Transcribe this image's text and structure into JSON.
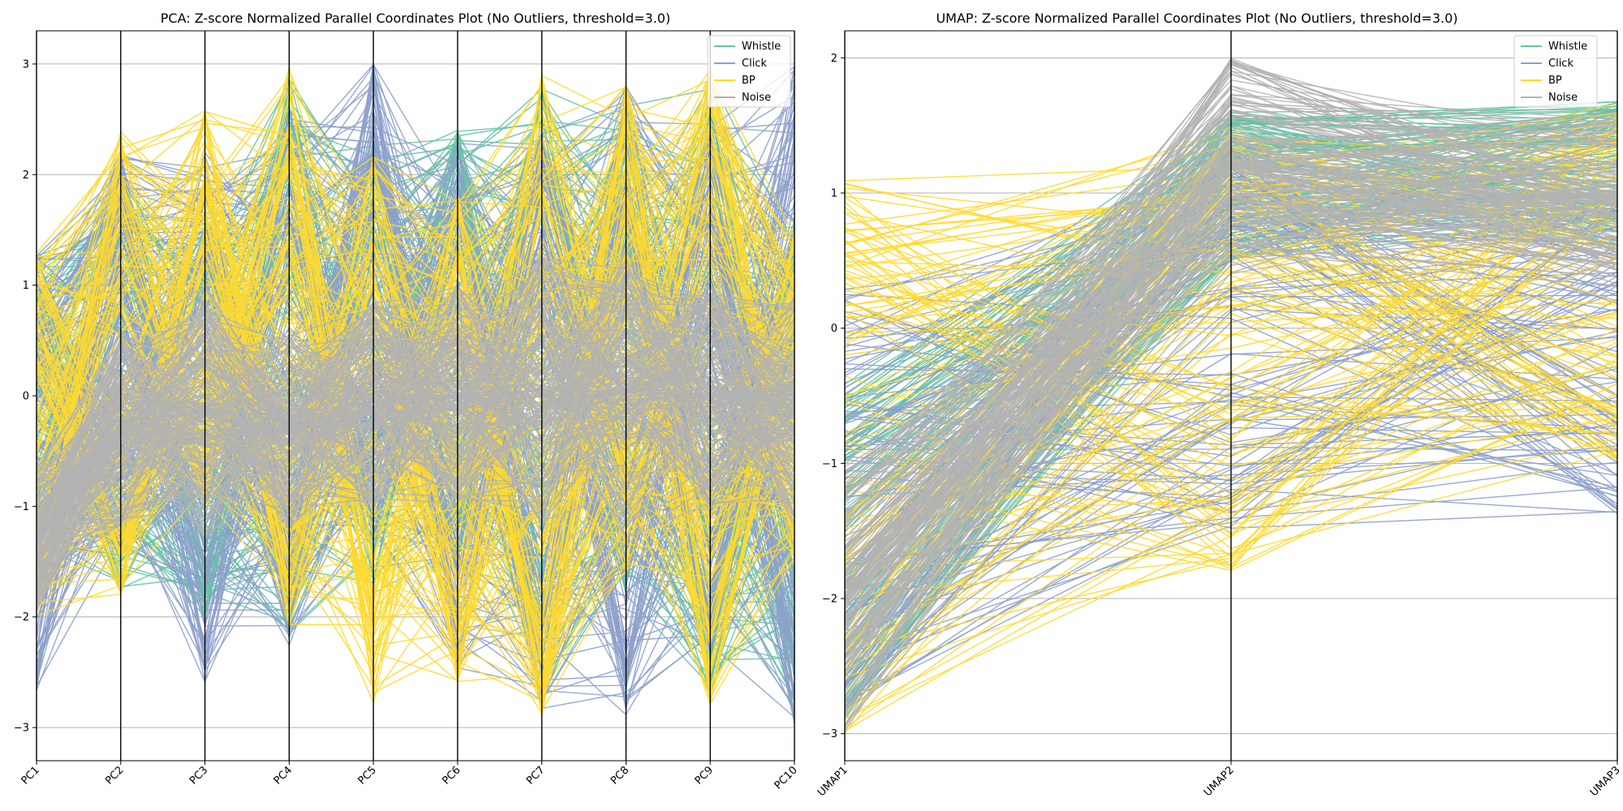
{
  "figure": {
    "background": "#ffffff"
  },
  "chart_data": [
    {
      "type": "parallel-coordinates",
      "title": "PCA: Z-score Normalized Parallel Coordinates Plot (No Outliers, threshold=3.0)",
      "axes": [
        "PC1",
        "PC2",
        "PC3",
        "PC4",
        "PC5",
        "PC6",
        "PC7",
        "PC8",
        "PC9",
        "PC10"
      ],
      "ylim": [
        -3.3,
        3.3
      ],
      "yticks": [
        -3,
        -2,
        -1,
        0,
        1,
        2,
        3
      ],
      "ytick_labels": [
        "−3",
        "−2",
        "−1",
        "0",
        "1",
        "2",
        "3"
      ],
      "grid": true,
      "legend": {
        "placement": "top-right",
        "entries": [
          {
            "label": "Whistle",
            "color": "#66c2a5"
          },
          {
            "label": "Click",
            "color": "#8da0cb"
          },
          {
            "label": "BP",
            "color": "#ffd92f"
          },
          {
            "label": "Noise",
            "color": "#b3b3b3"
          }
        ]
      },
      "series": [
        {
          "name": "Whistle",
          "color": "#66c2a5",
          "ranges": [
            [
              -1.5,
              1.3
            ],
            [
              -1.8,
              2.1
            ],
            [
              -2.0,
              1.6
            ],
            [
              -2.2,
              2.9
            ],
            [
              -1.8,
              2.3
            ],
            [
              -1.6,
              2.4
            ],
            [
              -2.8,
              2.8
            ],
            [
              -1.8,
              2.7
            ],
            [
              -2.8,
              2.9
            ],
            [
              -2.9,
              1.6
            ]
          ]
        },
        {
          "name": "Click",
          "color": "#8da0cb",
          "ranges": [
            [
              -2.7,
              1.3
            ],
            [
              -1.4,
              2.2
            ],
            [
              -2.6,
              2.2
            ],
            [
              -2.3,
              2.6
            ],
            [
              -1.3,
              3.0
            ],
            [
              -2.5,
              2.3
            ],
            [
              -2.9,
              2.4
            ],
            [
              -2.9,
              2.8
            ],
            [
              -2.4,
              2.5
            ],
            [
              -3.0,
              3.0
            ]
          ]
        },
        {
          "name": "BP",
          "color": "#ffd92f",
          "ranges": [
            [
              -2.0,
              1.3
            ],
            [
              -1.8,
              2.4
            ],
            [
              -1.0,
              2.6
            ],
            [
              -2.1,
              3.0
            ],
            [
              -2.8,
              2.2
            ],
            [
              -2.6,
              1.8
            ],
            [
              -3.0,
              2.9
            ],
            [
              -1.6,
              2.8
            ],
            [
              -2.8,
              3.0
            ],
            [
              -1.5,
              1.5
            ]
          ]
        },
        {
          "name": "Noise",
          "color": "#b3b3b3",
          "ranges": [
            [
              -2.0,
              -0.6
            ],
            [
              -1.2,
              0.6
            ],
            [
              -1.3,
              1.0
            ],
            [
              -1.2,
              0.6
            ],
            [
              -1.0,
              0.9
            ],
            [
              -1.0,
              1.0
            ],
            [
              -1.2,
              1.3
            ],
            [
              -1.3,
              1.4
            ],
            [
              -1.0,
              1.0
            ],
            [
              -1.2,
              0.9
            ]
          ]
        }
      ]
    },
    {
      "type": "parallel-coordinates",
      "title": "UMAP: Z-score Normalized Parallel Coordinates Plot (No Outliers, threshold=3.0)",
      "axes": [
        "UMAP1",
        "UMAP2",
        "UMAP3"
      ],
      "ylim": [
        -3.2,
        2.2
      ],
      "yticks": [
        -3,
        -2,
        -1,
        0,
        1,
        2
      ],
      "ytick_labels": [
        "−3",
        "−2",
        "−1",
        "0",
        "1",
        "2"
      ],
      "grid": true,
      "legend": {
        "placement": "top-right",
        "entries": [
          {
            "label": "Whistle",
            "color": "#66c2a5"
          },
          {
            "label": "Click",
            "color": "#8da0cb"
          },
          {
            "label": "BP",
            "color": "#ffd92f"
          },
          {
            "label": "Noise",
            "color": "#b3b3b3"
          }
        ]
      },
      "series": [
        {
          "name": "Whistle",
          "color": "#66c2a5",
          "ranges": [
            [
              -2.9,
              -0.4
            ],
            [
              0.5,
              1.6
            ],
            [
              0.6,
              1.7
            ]
          ]
        },
        {
          "name": "Click",
          "color": "#8da0cb",
          "ranges": [
            [
              -2.9,
              0.3
            ],
            [
              -1.5,
              1.4
            ],
            [
              -1.4,
              1.0
            ]
          ]
        },
        {
          "name": "BP",
          "color": "#ffd92f",
          "ranges": [
            [
              -3.0,
              1.15
            ],
            [
              -1.8,
              1.5
            ],
            [
              -1.0,
              1.7
            ]
          ]
        },
        {
          "name": "Noise",
          "color": "#b3b3b3",
          "ranges": [
            [
              -3.0,
              -1.0
            ],
            [
              0.4,
              2.0
            ],
            [
              0.3,
              1.6
            ]
          ]
        }
      ]
    }
  ]
}
